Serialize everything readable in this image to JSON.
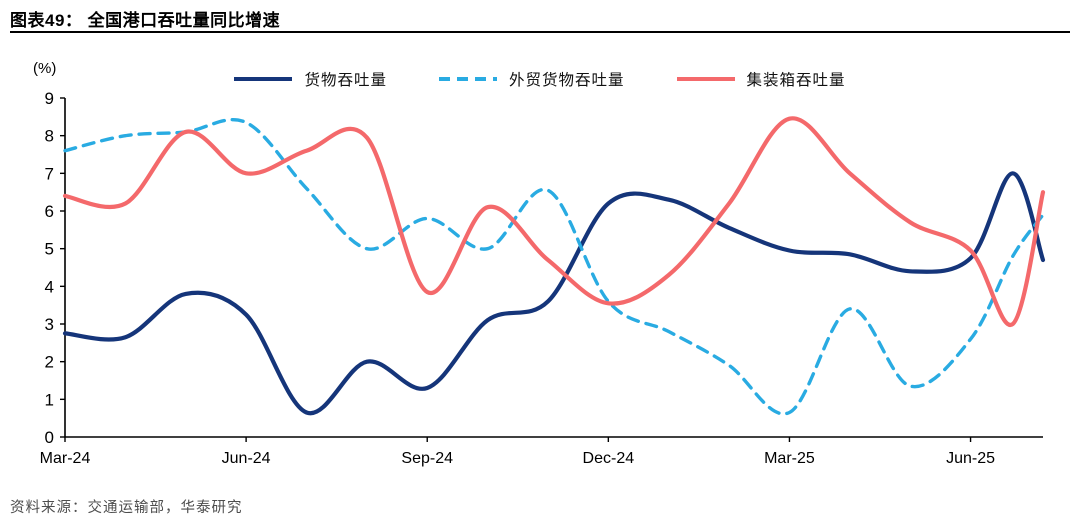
{
  "header": {
    "title": "图表49：  全国港口吞吐量同比增速"
  },
  "footer": {
    "source": "资料来源：交通运输部，华泰研究"
  },
  "chart_data": {
    "type": "line",
    "title": "全国港口吞吐量同比增速",
    "unit_label": "(%)",
    "grid": false,
    "legend_position": "top-center",
    "ylim": [
      0,
      9
    ],
    "xlim": [
      0,
      16.2
    ],
    "y_ticks": [
      0,
      1,
      2,
      3,
      4,
      5,
      6,
      7,
      8,
      9
    ],
    "x_ticks": [
      {
        "pos": 0,
        "label": "Mar-24"
      },
      {
        "pos": 3,
        "label": "Jun-24"
      },
      {
        "pos": 6,
        "label": "Sep-24"
      },
      {
        "pos": 9,
        "label": "Dec-24"
      },
      {
        "pos": 12,
        "label": "Mar-25"
      },
      {
        "pos": 15,
        "label": "Jun-25"
      }
    ],
    "x_unit": "months since Mar-2024 (monthly points, last two points are mid/late Jul-25)",
    "x": [
      0,
      1,
      2,
      3,
      4,
      5,
      6,
      7,
      8,
      9,
      10,
      11,
      12,
      13,
      14,
      15,
      15.7,
      16.2
    ],
    "series": [
      {
        "name": "货物吞吐量",
        "color": "#15357A",
        "style": "solid",
        "values": [
          2.75,
          2.65,
          3.8,
          3.25,
          0.65,
          2.0,
          1.3,
          3.1,
          3.6,
          6.2,
          6.3,
          5.55,
          4.95,
          4.85,
          4.4,
          4.75,
          7.0,
          4.7
        ]
      },
      {
        "name": "外贸货物吞吐量",
        "color": "#29ABE2",
        "style": "dashed",
        "values": [
          7.6,
          8.0,
          8.1,
          8.35,
          6.6,
          5.0,
          5.8,
          5.0,
          6.55,
          3.6,
          2.8,
          1.9,
          0.65,
          3.4,
          1.35,
          2.6,
          4.8,
          5.9
        ]
      },
      {
        "name": "集装箱吞吐量",
        "color": "#F4696B",
        "style": "solid",
        "values": [
          6.4,
          6.2,
          8.1,
          7.0,
          7.6,
          7.95,
          3.85,
          6.1,
          4.7,
          3.55,
          4.3,
          6.2,
          8.45,
          7.0,
          5.7,
          4.95,
          3.0,
          6.5
        ]
      }
    ]
  }
}
